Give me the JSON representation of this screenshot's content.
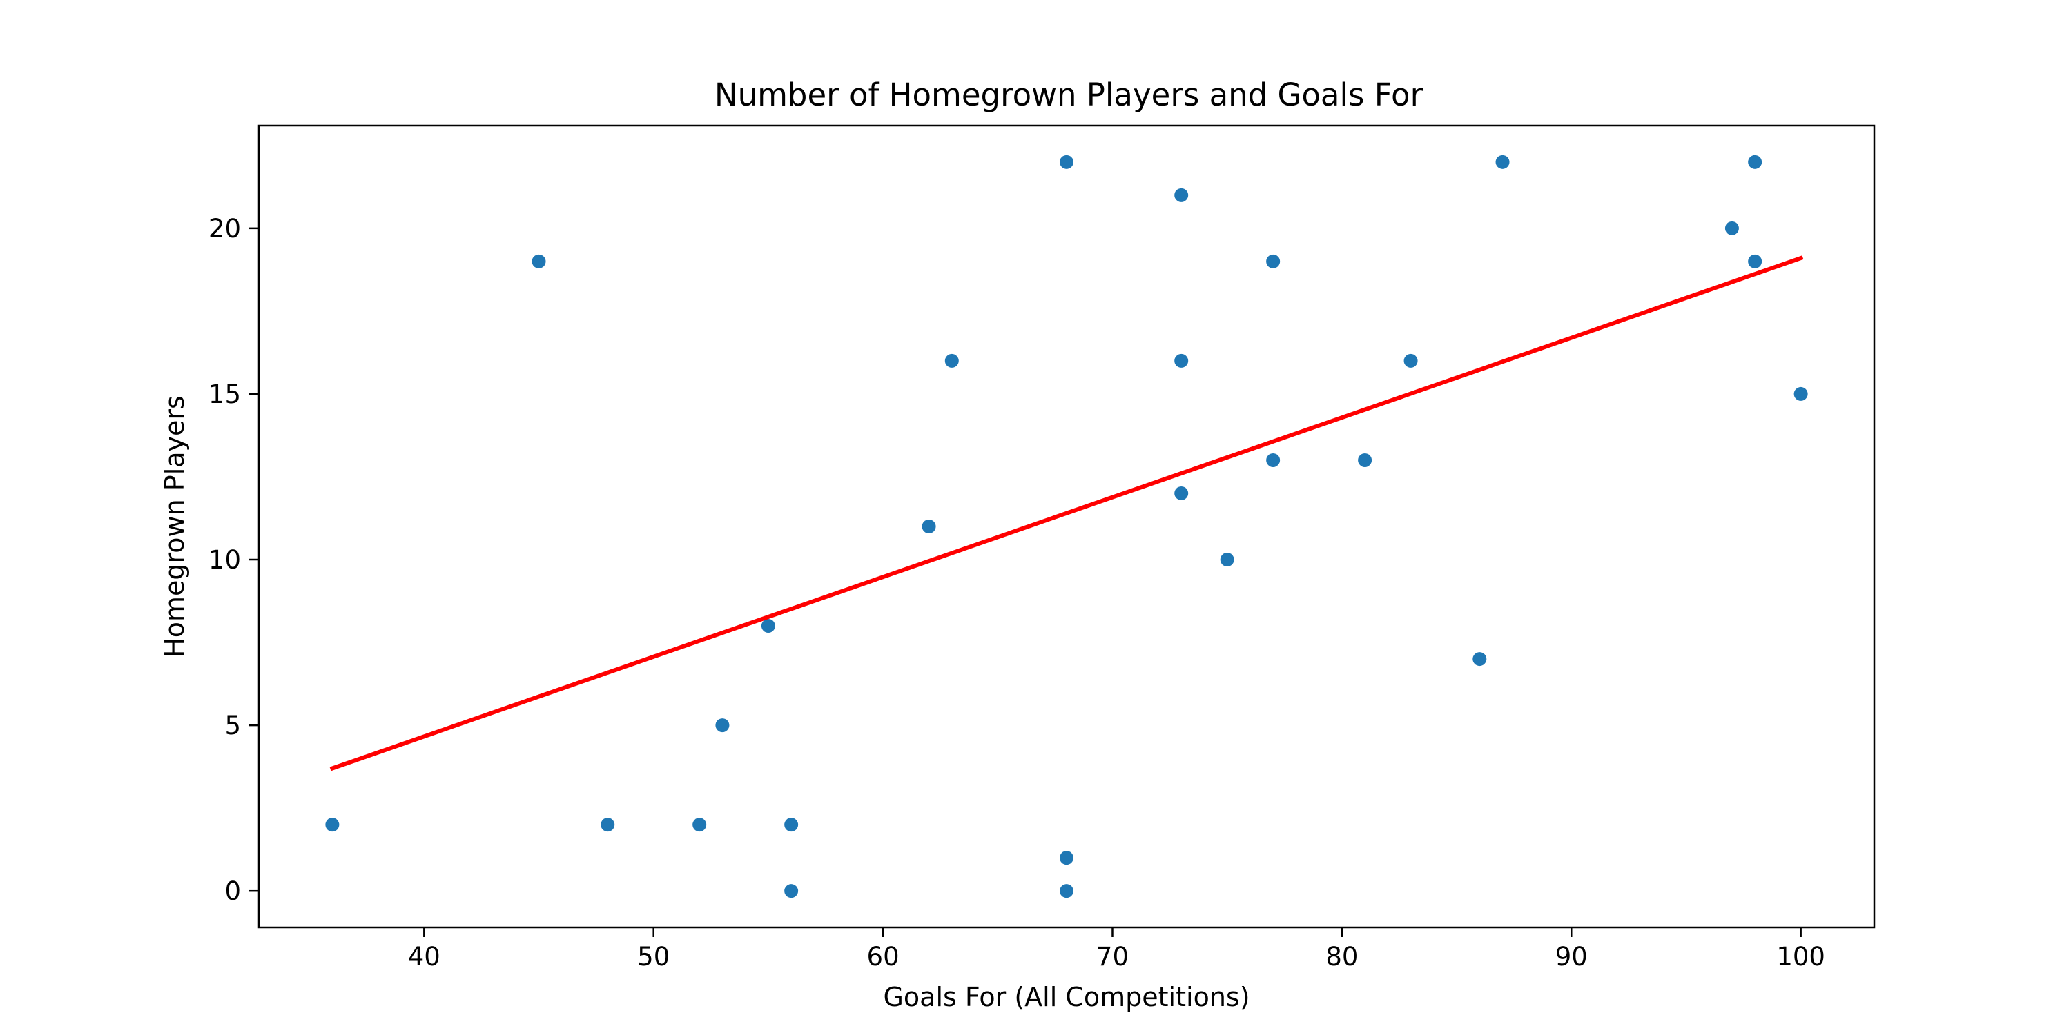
{
  "chart_data": {
    "type": "scatter",
    "title": "Number of Homegrown Players and Goals For",
    "xlabel": "Goals For (All Competitions)",
    "ylabel": "Homegrown Players",
    "xlim": [
      32.8,
      103.2
    ],
    "ylim": [
      -1.1,
      23.1
    ],
    "x_ticks": [
      40,
      50,
      60,
      70,
      80,
      90,
      100
    ],
    "y_ticks": [
      0,
      5,
      10,
      15,
      20
    ],
    "grid": false,
    "series": [
      {
        "type": "scatter",
        "color": "#1f77b4",
        "points": [
          [
            36,
            2
          ],
          [
            45,
            19
          ],
          [
            48,
            2
          ],
          [
            52,
            2
          ],
          [
            53,
            5
          ],
          [
            55,
            8
          ],
          [
            56,
            2
          ],
          [
            56,
            0
          ],
          [
            62,
            11
          ],
          [
            63,
            16
          ],
          [
            68,
            22
          ],
          [
            68,
            1
          ],
          [
            68,
            0
          ],
          [
            73,
            21
          ],
          [
            73,
            16
          ],
          [
            73,
            12
          ],
          [
            75,
            10
          ],
          [
            77,
            19
          ],
          [
            77,
            13
          ],
          [
            81,
            13
          ],
          [
            83,
            16
          ],
          [
            86,
            7
          ],
          [
            87,
            22
          ],
          [
            97,
            20
          ],
          [
            98,
            22
          ],
          [
            98,
            19
          ],
          [
            100,
            15
          ]
        ]
      },
      {
        "type": "line",
        "color": "#ff0000",
        "points": [
          [
            36,
            3.7
          ],
          [
            100,
            19.1
          ]
        ]
      }
    ]
  }
}
